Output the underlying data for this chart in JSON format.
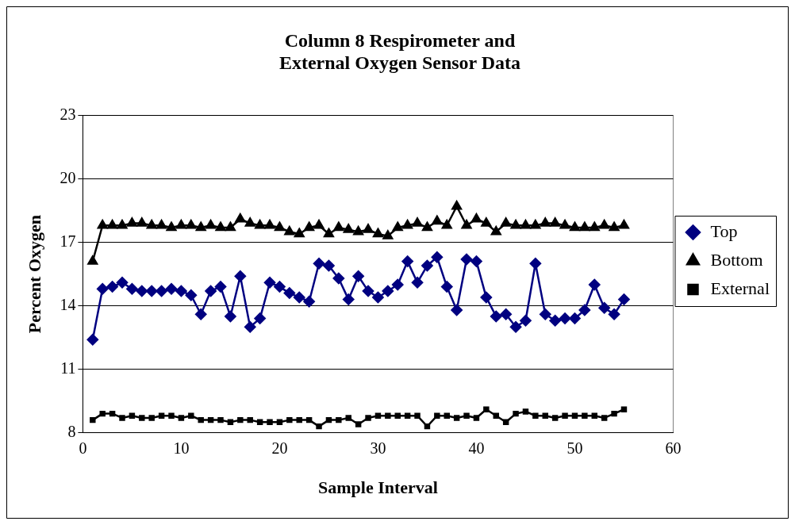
{
  "chart_data": {
    "type": "line",
    "title": "Column 8 Respirometer and External Oxygen Sensor Data",
    "xlabel": "Sample Interval",
    "ylabel": "Percent Oxygen",
    "x": [
      1,
      2,
      3,
      4,
      5,
      6,
      7,
      8,
      9,
      10,
      11,
      12,
      13,
      14,
      15,
      16,
      17,
      18,
      19,
      20,
      21,
      22,
      23,
      24,
      25,
      26,
      27,
      28,
      29,
      30,
      31,
      32,
      33,
      34,
      35,
      36,
      37,
      38,
      39,
      40,
      41,
      42,
      43,
      44,
      45,
      46,
      47,
      48,
      49,
      50,
      51,
      52,
      53,
      54,
      55
    ],
    "series": [
      {
        "name": "Top",
        "color": "#000080",
        "marker": "diamond",
        "values": [
          12.4,
          14.8,
          14.9,
          15.1,
          14.8,
          14.7,
          14.7,
          14.7,
          14.8,
          14.7,
          14.5,
          13.6,
          14.7,
          14.9,
          13.5,
          15.4,
          13.0,
          13.4,
          15.1,
          14.9,
          14.6,
          14.4,
          14.2,
          16.0,
          15.9,
          15.3,
          14.3,
          15.4,
          14.7,
          14.4,
          14.7,
          15.0,
          16.1,
          15.1,
          15.9,
          16.3,
          14.9,
          13.8,
          16.2,
          16.1,
          14.4,
          13.5,
          13.6,
          13.0,
          13.3,
          16.0,
          13.6,
          13.3,
          13.4,
          13.4,
          13.8,
          15.0,
          13.9,
          13.6,
          14.3
        ]
      },
      {
        "name": "Bottom",
        "color": "#000000",
        "marker": "triangle",
        "values": [
          16.1,
          17.8,
          17.8,
          17.8,
          17.9,
          17.9,
          17.8,
          17.8,
          17.7,
          17.8,
          17.8,
          17.7,
          17.8,
          17.7,
          17.7,
          18.1,
          17.9,
          17.8,
          17.8,
          17.7,
          17.5,
          17.4,
          17.7,
          17.8,
          17.4,
          17.7,
          17.6,
          17.5,
          17.6,
          17.4,
          17.3,
          17.7,
          17.8,
          17.9,
          17.7,
          18.0,
          17.8,
          18.7,
          17.8,
          18.1,
          17.9,
          17.5,
          17.9,
          17.8,
          17.8,
          17.8,
          17.9,
          17.9,
          17.8,
          17.7,
          17.7,
          17.7,
          17.8,
          17.7,
          17.8
        ]
      },
      {
        "name": "External",
        "color": "#000000",
        "marker": "square",
        "values": [
          8.6,
          8.9,
          8.9,
          8.7,
          8.8,
          8.7,
          8.7,
          8.8,
          8.8,
          8.7,
          8.8,
          8.6,
          8.6,
          8.6,
          8.5,
          8.6,
          8.6,
          8.5,
          8.5,
          8.5,
          8.6,
          8.6,
          8.6,
          8.3,
          8.6,
          8.6,
          8.7,
          8.4,
          8.7,
          8.8,
          8.8,
          8.8,
          8.8,
          8.8,
          8.3,
          8.8,
          8.8,
          8.7,
          8.8,
          8.7,
          9.1,
          8.8,
          8.5,
          8.9,
          9.0,
          8.8,
          8.8,
          8.7,
          8.8,
          8.8,
          8.8,
          8.8,
          8.7,
          8.9,
          9.1
        ]
      }
    ],
    "xlim": [
      0,
      60
    ],
    "xticks": [
      0,
      10,
      20,
      30,
      40,
      50,
      60
    ],
    "ylim": [
      8,
      23
    ],
    "yticks": [
      8,
      11,
      14,
      17,
      20,
      23
    ],
    "grid": "y",
    "legend": "right",
    "line_style": "solid"
  }
}
